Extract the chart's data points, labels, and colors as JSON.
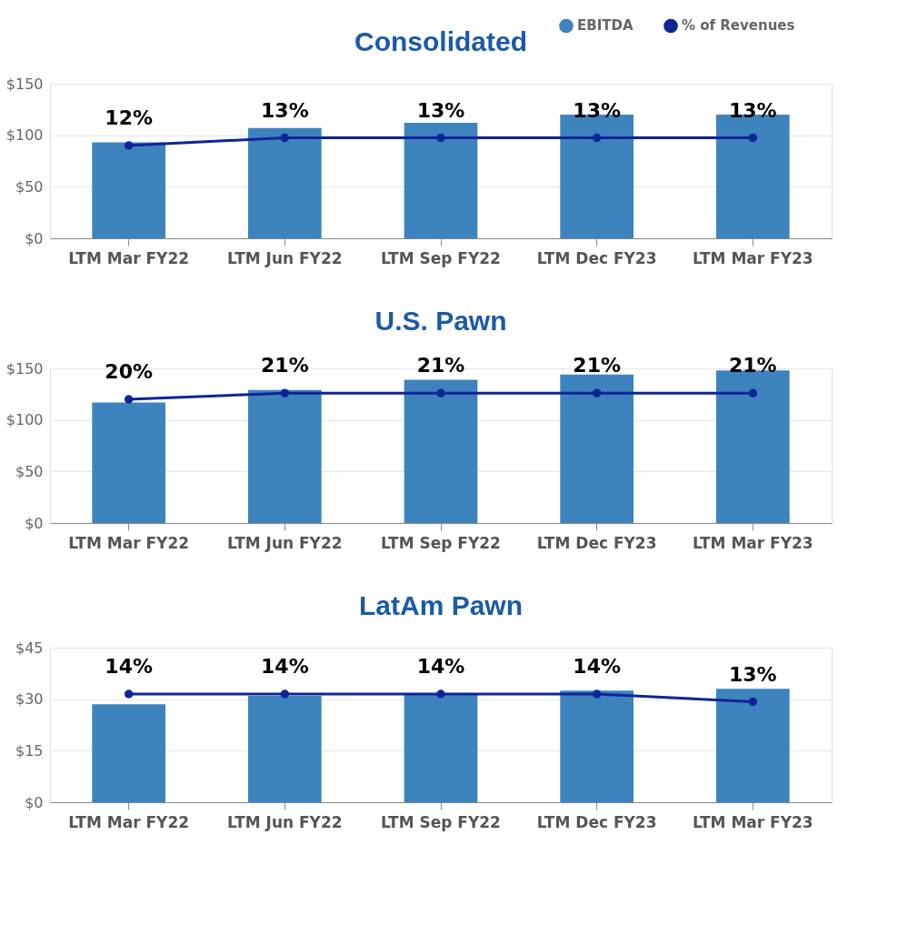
{
  "chart_data": [
    {
      "type": "bar",
      "title": "Consolidated",
      "categories": [
        "LTM Mar FY22",
        "LTM Jun FY22",
        "LTM Sep FY22",
        "LTM Dec FY23",
        "LTM Mar FY23"
      ],
      "ylim": [
        0,
        150
      ],
      "yticks": [
        {
          "value": 0,
          "label": "$0"
        },
        {
          "value": 50,
          "label": "$50"
        },
        {
          "value": 100,
          "label": "$100"
        },
        {
          "value": 150,
          "label": "$150"
        }
      ],
      "y2lim": [
        0,
        20
      ],
      "grid": "y",
      "legend": "top right",
      "series": [
        {
          "name": "EBITDA",
          "color": "#3d83be",
          "values": [
            93,
            107,
            112,
            120,
            120
          ]
        },
        {
          "name": "% of Revenues",
          "type": "line",
          "axis": "y2",
          "color": "#0f2597",
          "marker": "circle",
          "values": [
            12,
            13,
            13,
            13,
            13
          ],
          "value_labels": [
            "12%",
            "13%",
            "13%",
            "13%",
            "13%"
          ]
        }
      ]
    },
    {
      "type": "bar",
      "title": "U.S. Pawn",
      "categories": [
        "LTM Mar FY22",
        "LTM Jun FY22",
        "LTM Sep FY22",
        "LTM Dec FY23",
        "LTM Mar FY23"
      ],
      "ylim": [
        0,
        150
      ],
      "yticks": [
        {
          "value": 0,
          "label": "$0"
        },
        {
          "value": 50,
          "label": "$50"
        },
        {
          "value": 100,
          "label": "$100"
        },
        {
          "value": 150,
          "label": "$150"
        }
      ],
      "y2lim": [
        0,
        25
      ],
      "grid": "y",
      "series": [
        {
          "name": "EBITDA",
          "color": "#3d83be",
          "values": [
            117,
            129,
            139,
            144,
            148
          ]
        },
        {
          "name": "% of Revenues",
          "type": "line",
          "axis": "y2",
          "color": "#0f2597",
          "marker": "circle",
          "values": [
            20,
            21,
            21,
            21,
            21
          ],
          "value_labels": [
            "20%",
            "21%",
            "21%",
            "21%",
            "21%"
          ]
        }
      ]
    },
    {
      "type": "bar",
      "title": "LatAm Pawn",
      "categories": [
        "LTM Mar FY22",
        "LTM Jun FY22",
        "LTM Sep FY22",
        "LTM Dec FY23",
        "LTM Mar FY23"
      ],
      "ylim": [
        0,
        45
      ],
      "yticks": [
        {
          "value": 0,
          "label": "$0"
        },
        {
          "value": 15,
          "label": "$15"
        },
        {
          "value": 30,
          "label": "$30"
        },
        {
          "value": 45,
          "label": "$45"
        }
      ],
      "y2lim": [
        0,
        20
      ],
      "grid": "y",
      "series": [
        {
          "name": "EBITDA",
          "color": "#3d83be",
          "values": [
            28.5,
            31,
            31.5,
            32.5,
            33
          ]
        },
        {
          "name": "% of Revenues",
          "type": "line",
          "axis": "y2",
          "color": "#0f2597",
          "marker": "circle",
          "values": [
            14,
            14,
            14,
            14,
            13
          ],
          "value_labels": [
            "14%",
            "14%",
            "14%",
            "14%",
            "13%"
          ]
        }
      ]
    }
  ]
}
